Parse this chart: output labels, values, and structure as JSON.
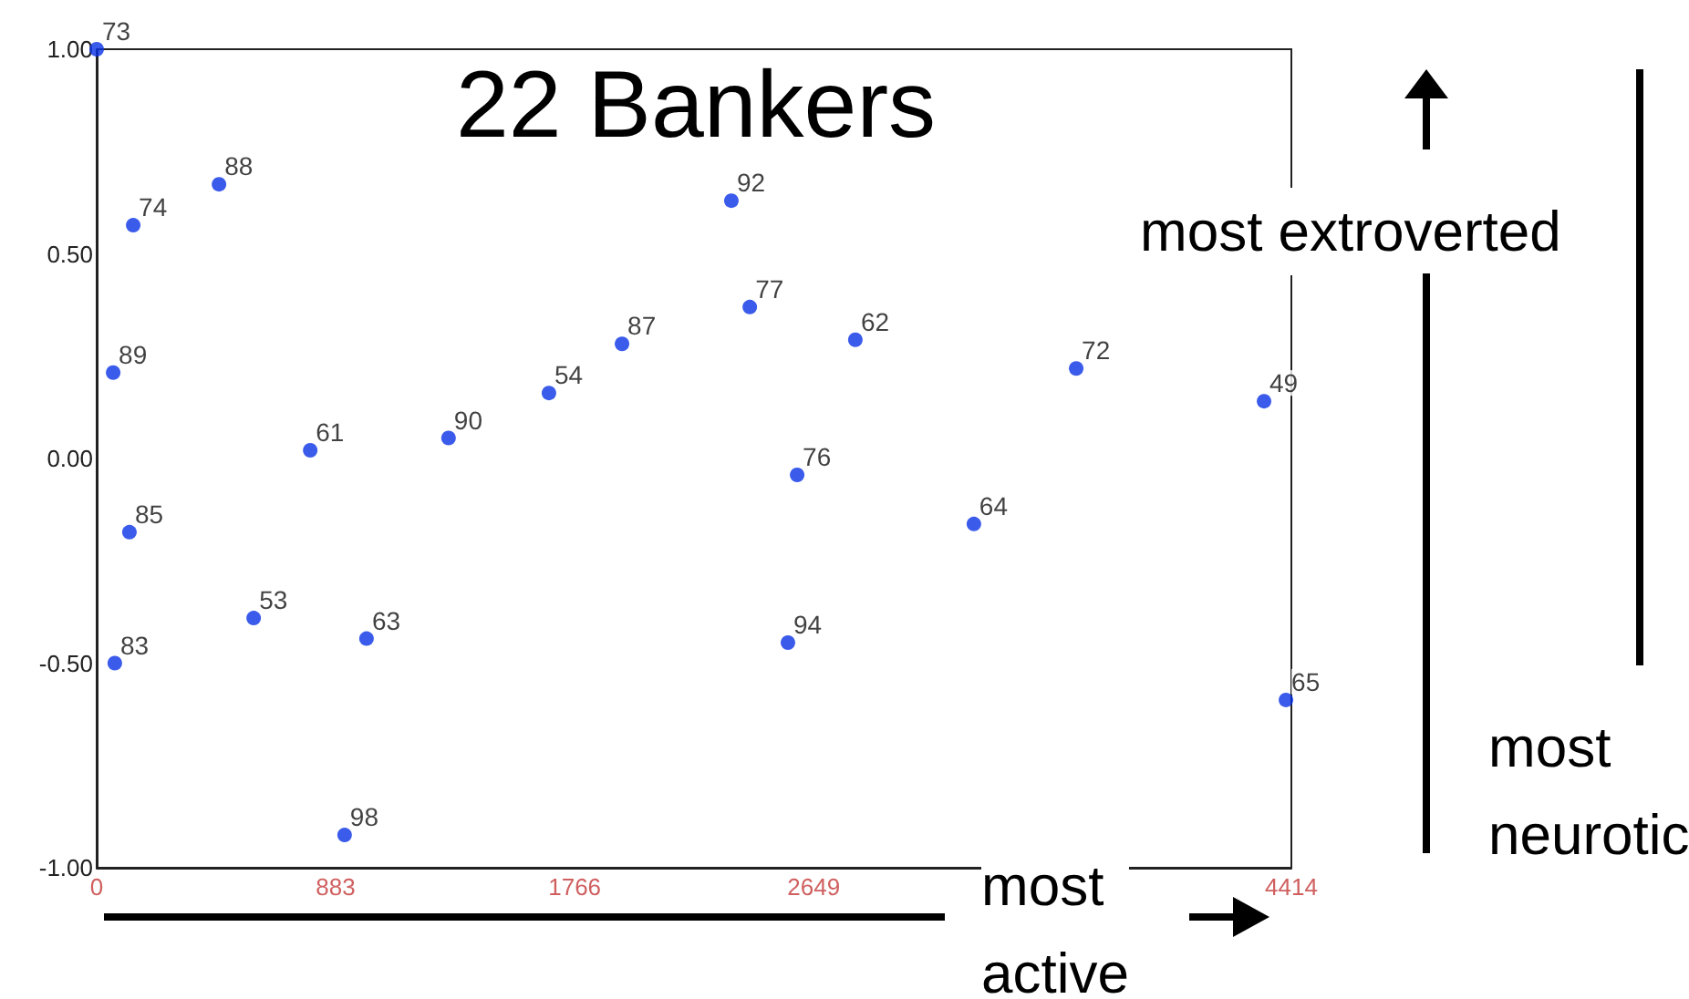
{
  "chart_data": {
    "type": "scatter",
    "title": "22 Bankers",
    "x": [
      0,
      135,
      452,
      61,
      789,
      1300,
      1671,
      1941,
      2345,
      2413,
      2803,
      3619,
      4313,
      2588,
      3241,
      121,
      580,
      997,
      67,
      2554,
      4394,
      916
    ],
    "values": [
      1.0,
      0.57,
      0.67,
      0.21,
      0.02,
      0.05,
      0.16,
      0.28,
      0.63,
      0.37,
      0.29,
      0.22,
      0.14,
      -0.04,
      -0.16,
      -0.18,
      -0.39,
      -0.44,
      -0.5,
      -0.45,
      -0.59,
      -0.92
    ],
    "color": "#0a32e6",
    "marker": "circle",
    "grid": false,
    "xlim": [
      0,
      4414
    ],
    "xticks": [
      0,
      883,
      1766,
      2649,
      4414
    ],
    "ylim": [
      -1,
      1
    ],
    "yticks": [
      {
        "value": -1,
        "label": "-1.00"
      },
      {
        "value": -0.5,
        "label": "-0.50"
      },
      {
        "value": 0,
        "label": "0.00"
      },
      {
        "value": 0.5,
        "label": "0.50"
      },
      {
        "value": 1,
        "label": "1.00"
      }
    ],
    "annotations": [
      {
        "text": "73",
        "x": 0,
        "y": 1.0
      },
      {
        "text": "74",
        "x": 135,
        "y": 0.57
      },
      {
        "text": "88",
        "x": 452,
        "y": 0.67
      },
      {
        "text": "89",
        "x": 61,
        "y": 0.21
      },
      {
        "text": "61",
        "x": 789,
        "y": 0.02
      },
      {
        "text": "90",
        "x": 1300,
        "y": 0.05
      },
      {
        "text": "54",
        "x": 1671,
        "y": 0.16
      },
      {
        "text": "87",
        "x": 1941,
        "y": 0.28
      },
      {
        "text": "92",
        "x": 2345,
        "y": 0.63
      },
      {
        "text": "77",
        "x": 2413,
        "y": 0.37
      },
      {
        "text": "62",
        "x": 2803,
        "y": 0.29
      },
      {
        "text": "72",
        "x": 3619,
        "y": 0.22
      },
      {
        "text": "49",
        "x": 4313,
        "y": 0.14
      },
      {
        "text": "76",
        "x": 2588,
        "y": -0.04
      },
      {
        "text": "64",
        "x": 3241,
        "y": -0.16
      },
      {
        "text": "85",
        "x": 121,
        "y": -0.18
      },
      {
        "text": "53",
        "x": 580,
        "y": -0.39
      },
      {
        "text": "63",
        "x": 997,
        "y": -0.44
      },
      {
        "text": "83",
        "x": 67,
        "y": -0.5
      },
      {
        "text": "94",
        "x": 2554,
        "y": -0.45
      },
      {
        "text": "65",
        "x": 4394,
        "y": -0.59
      },
      {
        "text": "98",
        "x": 916,
        "y": -0.92
      },
      "most extroverted",
      "most\nactive",
      "most\nneurotic"
    ]
  }
}
